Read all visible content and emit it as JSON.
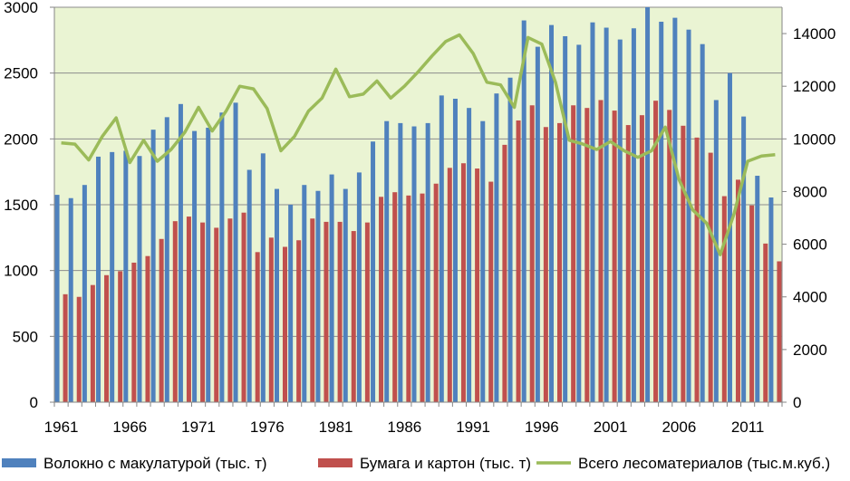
{
  "chart_data": {
    "type": "bar",
    "title": "",
    "xlabel": "",
    "ylabel": "",
    "y2label": "",
    "x": [
      1961,
      1962,
      1963,
      1964,
      1965,
      1966,
      1967,
      1968,
      1969,
      1970,
      1971,
      1972,
      1973,
      1974,
      1975,
      1976,
      1977,
      1978,
      1979,
      1980,
      1981,
      1982,
      1983,
      1984,
      1985,
      1986,
      1987,
      1988,
      1989,
      1990,
      1991,
      1992,
      1993,
      1994,
      1995,
      1996,
      1997,
      1998,
      1999,
      2000,
      2001,
      2002,
      2003,
      2004,
      2005,
      2006,
      2007,
      2008,
      2009,
      2010,
      2011,
      2012,
      2013
    ],
    "x_tick_labels": [
      "1961",
      "1966",
      "1971",
      "1976",
      "1981",
      "1986",
      "1991",
      "1996",
      "2001",
      "2006",
      "2011"
    ],
    "ylim": [
      0,
      3000
    ],
    "y_ticks": [
      0,
      500,
      1000,
      1500,
      2000,
      2500,
      3000
    ],
    "y2lim": [
      0,
      15000
    ],
    "y2_ticks": [
      0,
      2000,
      4000,
      6000,
      8000,
      10000,
      12000,
      14000
    ],
    "grid": "horizontal",
    "legend_position": "bottom",
    "series": [
      {
        "name": "Волокно с макулатурой (тыс. т)",
        "kind": "bar",
        "axis": "left",
        "color": "#4F81BD",
        "values": [
          1575,
          1550,
          1650,
          1865,
          1900,
          1910,
          1870,
          2070,
          2165,
          2265,
          2060,
          2085,
          2200,
          2275,
          1765,
          1890,
          1620,
          1500,
          1650,
          1605,
          1730,
          1620,
          1745,
          1980,
          2135,
          2120,
          2095,
          2120,
          2330,
          2305,
          2235,
          2135,
          2345,
          2465,
          2900,
          2700,
          2865,
          2780,
          2715,
          2885,
          2845,
          2755,
          2840,
          3000,
          2890,
          2920,
          2830,
          2720,
          2295,
          2500,
          2170,
          1720,
          1555
        ]
      },
      {
        "name": "Бумага и картон (тыс. т)",
        "kind": "bar",
        "axis": "left",
        "color": "#C0504D",
        "values": [
          820,
          800,
          890,
          965,
          995,
          1060,
          1110,
          1240,
          1375,
          1410,
          1365,
          1325,
          1395,
          1440,
          1140,
          1250,
          1180,
          1230,
          1395,
          1370,
          1370,
          1300,
          1365,
          1560,
          1595,
          1570,
          1585,
          1660,
          1780,
          1815,
          1775,
          1675,
          1955,
          2140,
          2255,
          2090,
          2120,
          2255,
          2235,
          2295,
          2215,
          2105,
          2180,
          2290,
          2220,
          2100,
          2010,
          1895,
          1565,
          1690,
          1495,
          1205,
          1070
        ]
      },
      {
        "name": "Всего лесоматериалов (тыс.м.куб.)",
        "kind": "line",
        "axis": "right",
        "color": "#9BBB59",
        "values": [
          9850,
          9800,
          9200,
          10100,
          10800,
          9100,
          9950,
          9150,
          9600,
          10250,
          11200,
          10300,
          11050,
          12000,
          11900,
          11150,
          9550,
          10100,
          11050,
          11550,
          12650,
          11600,
          11700,
          12200,
          11550,
          12000,
          12550,
          13150,
          13700,
          13950,
          13250,
          12150,
          12050,
          11200,
          13850,
          13600,
          12150,
          9950,
          9800,
          9600,
          9900,
          9550,
          9300,
          9550,
          10450,
          8450,
          7300,
          6800,
          5600,
          7150,
          9150,
          9350,
          9400
        ]
      }
    ]
  }
}
